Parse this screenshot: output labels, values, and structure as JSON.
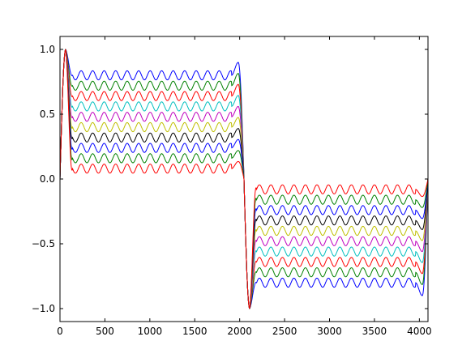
{
  "chart_data": {
    "type": "line",
    "title": "",
    "xlabel": "",
    "ylabel": "",
    "xlim": [
      0,
      4096
    ],
    "ylim": [
      -1.1,
      1.1
    ],
    "grid": false,
    "legend": "none",
    "x_ticks": [
      0,
      500,
      1000,
      1500,
      2000,
      2500,
      3000,
      3500,
      4000
    ],
    "x_tick_labels": [
      "0",
      "500",
      "1000",
      "1500",
      "2000",
      "2500",
      "3000",
      "3500",
      "4000"
    ],
    "y_ticks": [
      1.0,
      0.5,
      0.0,
      -0.5,
      -1.0
    ],
    "y_tick_labels": [
      "1.0",
      "0.5",
      "0.0",
      "−0.5",
      "−1.0"
    ],
    "series_description": "Square-wave-like curves with ripple; each series flips sign at x=2048",
    "series": [
      {
        "color": "#0000ff",
        "plateau": 0.8
      },
      {
        "color": "#008000",
        "plateau": 0.72
      },
      {
        "color": "#ff0000",
        "plateau": 0.64
      },
      {
        "color": "#00bfbf",
        "plateau": 0.56
      },
      {
        "color": "#bf00bf",
        "plateau": 0.48
      },
      {
        "color": "#bfbf00",
        "plateau": 0.4
      },
      {
        "color": "#000000",
        "plateau": 0.32
      },
      {
        "color": "#0000ff",
        "plateau": 0.24
      },
      {
        "color": "#008000",
        "plateau": 0.16
      },
      {
        "color": "#ff0000",
        "plateau": 0.08
      }
    ],
    "ripple_amplitude": 0.035,
    "ripple_period": 128,
    "peak_value": 1.0
  }
}
